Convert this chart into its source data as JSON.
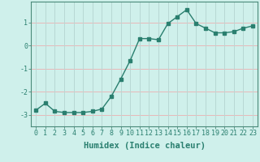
{
  "x": [
    0,
    1,
    2,
    3,
    4,
    5,
    6,
    7,
    8,
    9,
    10,
    11,
    12,
    13,
    14,
    15,
    16,
    17,
    18,
    19,
    20,
    21,
    22,
    23
  ],
  "y": [
    -2.8,
    -2.5,
    -2.85,
    -2.9,
    -2.9,
    -2.9,
    -2.85,
    -2.75,
    -2.2,
    -1.45,
    -0.65,
    0.3,
    0.3,
    0.25,
    0.95,
    1.25,
    1.55,
    0.95,
    0.75,
    0.55,
    0.55,
    0.6,
    0.75,
    0.85
  ],
  "line_color": "#2a7f6f",
  "marker": "s",
  "marker_size": 2.2,
  "bg_color": "#cff0eb",
  "grid_color_h": "#e8b8b8",
  "grid_color_v": "#b8d8d4",
  "xlabel": "Humidex (Indice chaleur)",
  "xlabel_fontsize": 7.5,
  "tick_fontsize": 6,
  "yticks": [
    -3,
    -2,
    -1,
    0,
    1
  ],
  "xlim": [
    -0.5,
    23.5
  ],
  "ylim": [
    -3.5,
    1.9
  ],
  "line_width": 1.0,
  "axis_color": "#2a7f6f",
  "spine_color": "#4a8a7a"
}
